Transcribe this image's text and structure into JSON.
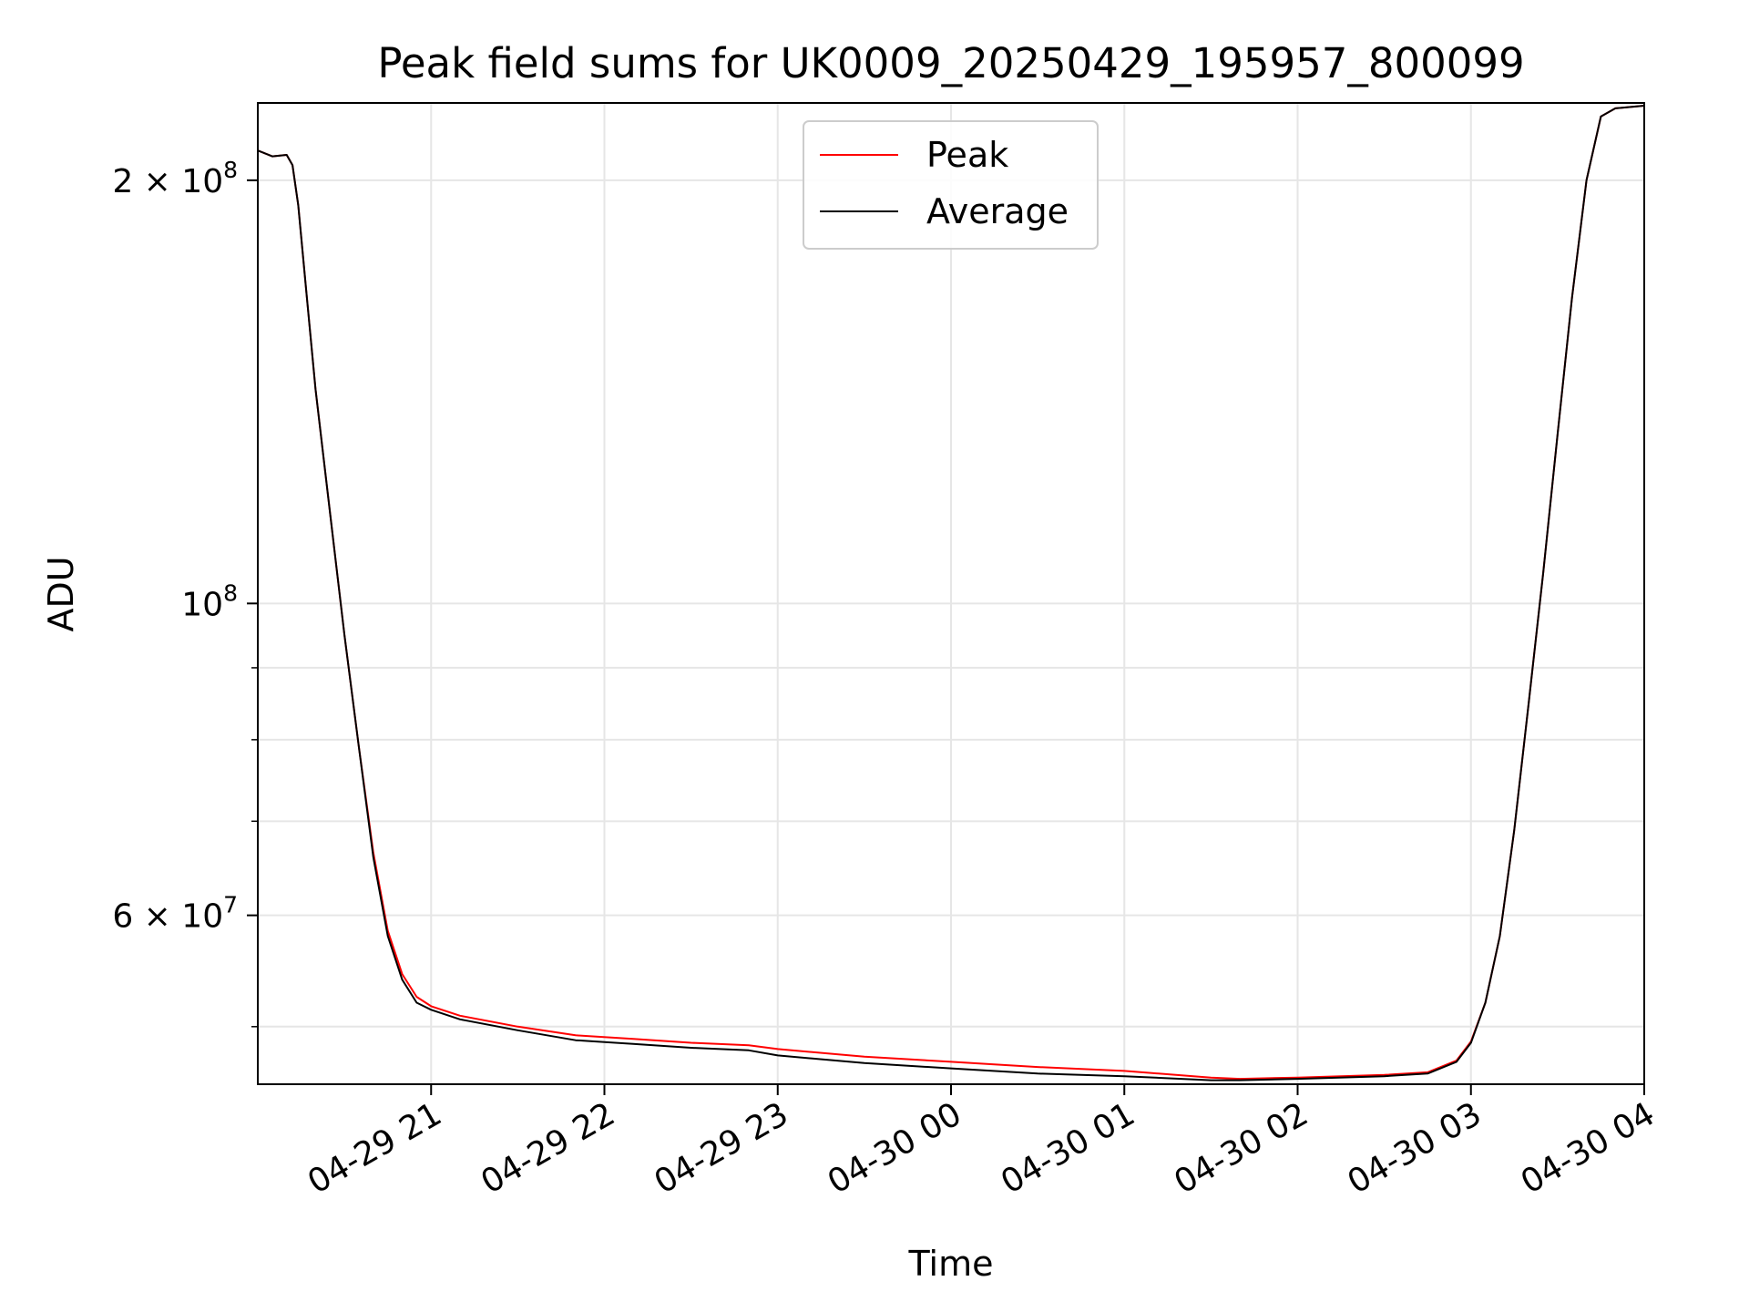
{
  "chart_data": {
    "type": "line",
    "title": "Peak field sums for UK0009_20250429_195957_800099",
    "xlabel": "Time",
    "ylabel": "ADU",
    "yscale": "log",
    "grid": true,
    "legend_position": "top-center",
    "x_range": [
      "2025-04-29 20:00",
      "2025-04-30 04:00"
    ],
    "ylim": [
      45500000,
      227000000
    ],
    "x_ticks": [
      {
        "label": "04-29 21",
        "value": "2025-04-29 21:00"
      },
      {
        "label": "04-29 22",
        "value": "2025-04-29 22:00"
      },
      {
        "label": "04-29 23",
        "value": "2025-04-29 23:00"
      },
      {
        "label": "04-30 00",
        "value": "2025-04-30 00:00"
      },
      {
        "label": "04-30 01",
        "value": "2025-04-30 01:00"
      },
      {
        "label": "04-30 02",
        "value": "2025-04-30 02:00"
      },
      {
        "label": "04-30 03",
        "value": "2025-04-30 03:00"
      },
      {
        "label": "04-30 04",
        "value": "2025-04-30 04:00"
      }
    ],
    "y_ticks": [
      {
        "base": "2 × 10",
        "exp": "8",
        "value": 200000000
      },
      {
        "base": "10",
        "exp": "8",
        "value": 100000000
      },
      {
        "base": "6 × 10",
        "exp": "7",
        "value": 60000000
      }
    ],
    "y_minor_ticks": [
      50000000,
      70000000,
      80000000,
      90000000
    ],
    "series": [
      {
        "name": "Peak",
        "color": "#ff0000",
        "x": [
          "2025-04-29 20:00",
          "2025-04-29 20:05",
          "2025-04-29 20:10",
          "2025-04-29 20:12",
          "2025-04-29 20:14",
          "2025-04-29 20:17",
          "2025-04-29 20:20",
          "2025-04-29 20:25",
          "2025-04-29 20:30",
          "2025-04-29 20:35",
          "2025-04-29 20:40",
          "2025-04-29 20:45",
          "2025-04-29 20:50",
          "2025-04-29 20:55",
          "2025-04-29 21:00",
          "2025-04-29 21:10",
          "2025-04-29 21:30",
          "2025-04-29 21:50",
          "2025-04-29 22:10",
          "2025-04-29 22:30",
          "2025-04-29 22:50",
          "2025-04-29 23:00",
          "2025-04-29 23:30",
          "2025-04-30 00:00",
          "2025-04-30 00:30",
          "2025-04-30 01:00",
          "2025-04-30 01:30",
          "2025-04-30 01:40",
          "2025-04-30 02:00",
          "2025-04-30 02:30",
          "2025-04-30 02:45",
          "2025-04-30 02:55",
          "2025-04-30 03:00",
          "2025-04-30 03:05",
          "2025-04-30 03:10",
          "2025-04-30 03:15",
          "2025-04-30 03:20",
          "2025-04-30 03:25",
          "2025-04-30 03:30",
          "2025-04-30 03:35",
          "2025-04-30 03:40",
          "2025-04-30 03:45",
          "2025-04-30 03:50",
          "2025-04-30 04:00"
        ],
        "y": [
          210000000,
          208000000,
          208500000,
          205000000,
          192000000,
          165000000,
          142000000,
          116000000,
          95000000,
          79000000,
          66500000,
          58500000,
          54500000,
          52500000,
          51700000,
          50900000,
          50000000,
          49300000,
          49000000,
          48700000,
          48500000,
          48200000,
          47600000,
          47200000,
          46800000,
          46500000,
          46000000,
          45900000,
          46000000,
          46200000,
          46400000,
          47300000,
          48800000,
          52000000,
          58000000,
          69000000,
          85000000,
          105000000,
          132000000,
          165000000,
          200000000,
          222000000,
          225000000,
          226000000
        ]
      },
      {
        "name": "Average",
        "color": "#000000",
        "x": [
          "2025-04-29 20:00",
          "2025-04-29 20:05",
          "2025-04-29 20:10",
          "2025-04-29 20:12",
          "2025-04-29 20:14",
          "2025-04-29 20:17",
          "2025-04-29 20:20",
          "2025-04-29 20:25",
          "2025-04-29 20:30",
          "2025-04-29 20:35",
          "2025-04-29 20:40",
          "2025-04-29 20:45",
          "2025-04-29 20:50",
          "2025-04-29 20:55",
          "2025-04-29 21:00",
          "2025-04-29 21:10",
          "2025-04-29 21:30",
          "2025-04-29 21:50",
          "2025-04-29 22:10",
          "2025-04-29 22:30",
          "2025-04-29 22:50",
          "2025-04-29 23:00",
          "2025-04-29 23:30",
          "2025-04-30 00:00",
          "2025-04-30 00:30",
          "2025-04-30 01:00",
          "2025-04-30 01:30",
          "2025-04-30 01:40",
          "2025-04-30 02:00",
          "2025-04-30 02:30",
          "2025-04-30 02:45",
          "2025-04-30 02:55",
          "2025-04-30 03:00",
          "2025-04-30 03:05",
          "2025-04-30 03:10",
          "2025-04-30 03:15",
          "2025-04-30 03:20",
          "2025-04-30 03:25",
          "2025-04-30 03:30",
          "2025-04-30 03:35",
          "2025-04-30 03:40",
          "2025-04-30 03:45",
          "2025-04-30 03:50",
          "2025-04-30 04:00"
        ],
        "y": [
          210000000,
          208000000,
          208500000,
          205000000,
          192000000,
          165000000,
          142000000,
          116000000,
          95000000,
          79000000,
          66000000,
          58000000,
          54000000,
          52000000,
          51400000,
          50600000,
          49700000,
          48900000,
          48600000,
          48300000,
          48100000,
          47700000,
          47100000,
          46700000,
          46300000,
          46100000,
          45800000,
          45800000,
          45900000,
          46100000,
          46300000,
          47200000,
          48700000,
          52000000,
          58000000,
          69000000,
          85000000,
          105000000,
          132000000,
          165000000,
          200000000,
          222000000,
          225000000,
          226000000
        ]
      }
    ]
  }
}
